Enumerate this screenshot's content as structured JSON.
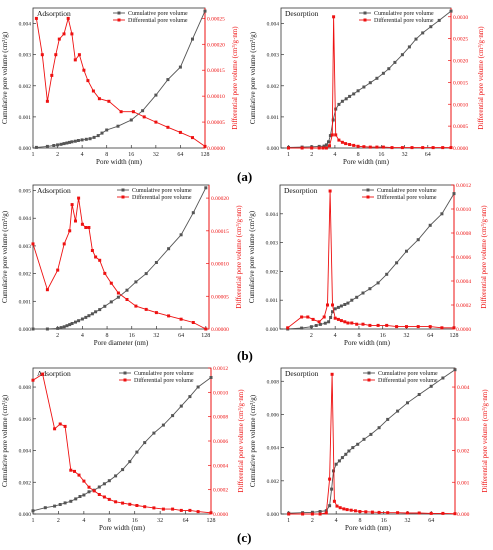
{
  "colors": {
    "cumulative": "#555555",
    "differential": "#ee1111",
    "axis": "#333333"
  },
  "chart_data": [
    {
      "panel": "a",
      "title": "Adsorption",
      "type": "line",
      "x_scale": "log2",
      "xlabel": "Pore width (nm)",
      "ylabel": "Cumulative pore volume (cm³/g)",
      "y2label": "Differential pore volume (cm³/g·nm)",
      "xlim": [
        1,
        128
      ],
      "xticks": [
        "1",
        "2",
        "4",
        "8",
        "16",
        "32",
        "64",
        "128"
      ],
      "ylim": [
        0,
        0.0045
      ],
      "yticks": [
        "0.000",
        "0.001",
        "0.002",
        "0.003",
        "0.004"
      ],
      "y2lim": [
        0,
        0.00027
      ],
      "y2ticks": [
        "0.00000",
        "0.00005",
        "0.00010",
        "0.00015",
        "0.00020",
        "0.00025"
      ],
      "legend": "top-right",
      "series": [
        {
          "name": "Cumulative pore volume",
          "axis": "left",
          "x": [
            1.1,
            1.5,
            1.8,
            2.0,
            2.2,
            2.4,
            2.6,
            2.8,
            3.0,
            3.3,
            3.6,
            4.0,
            4.5,
            5.0,
            5.6,
            6.3,
            7.0,
            8.0,
            11,
            16,
            22,
            32,
            45,
            64,
            90,
            128
          ],
          "y": [
            2e-05,
            5e-05,
            8e-05,
            0.0001,
            0.00012,
            0.00014,
            0.00016,
            0.00018,
            0.0002,
            0.00022,
            0.00024,
            0.00026,
            0.00028,
            0.0003,
            0.00034,
            0.0004,
            0.00048,
            0.00058,
            0.0007,
            0.0009,
            0.0012,
            0.0017,
            0.0022,
            0.0026,
            0.0035,
            0.0044
          ]
        },
        {
          "name": "Differential pore volume",
          "axis": "right",
          "x": [
            1.1,
            1.3,
            1.5,
            1.7,
            1.9,
            2.1,
            2.4,
            2.7,
            3.0,
            3.3,
            3.7,
            4.2,
            4.7,
            5.5,
            6.5,
            8.5,
            12,
            17,
            23,
            32,
            45,
            64,
            90,
            128
          ],
          "y": [
            0.00025,
            0.00018,
            9e-05,
            0.00014,
            0.00018,
            0.00021,
            0.00022,
            0.00025,
            0.00022,
            0.00017,
            0.00018,
            0.00015,
            0.00013,
            0.00011,
            9.5e-05,
            9e-05,
            7e-05,
            7e-05,
            6e-05,
            5e-05,
            4e-05,
            3e-05,
            2e-05,
            3e-06
          ]
        }
      ]
    },
    {
      "panel": "a",
      "title": "Desorption",
      "type": "line",
      "x_scale": "log2",
      "xlabel": "Pore width (nm)",
      "ylabel": "Cumulative pore volume (cm³/g)",
      "y2label": "Differential pore volume (cm³/g·nm)",
      "xlim": [
        0.8,
        128
      ],
      "xticks": [
        "1",
        "2",
        "4",
        "8",
        "16",
        "32",
        "64"
      ],
      "ylim": [
        0,
        0.0045
      ],
      "yticks": [
        "0.000",
        "0.001",
        "0.002",
        "0.003",
        "0.004"
      ],
      "y2lim": [
        0,
        0.0032
      ],
      "y2ticks": [
        "0.0000",
        "0.0005",
        "0.0010",
        "0.0015",
        "0.0020",
        "0.0025",
        "0.0030"
      ],
      "legend": "top-right",
      "series": [
        {
          "name": "Cumulative pore volume",
          "axis": "left",
          "x": [
            1,
            1.5,
            2,
            2.5,
            2.9,
            3.1,
            3.3,
            3.5,
            3.8,
            4.1,
            4.5,
            5,
            5.6,
            6.2,
            7,
            8,
            9.5,
            11.5,
            14,
            17,
            20,
            24,
            30,
            37,
            45,
            55,
            70,
            90,
            128
          ],
          "y": [
            2e-05,
            3e-05,
            4e-05,
            5e-05,
            6e-05,
            0.0001,
            0.0002,
            0.0004,
            0.0009,
            0.00125,
            0.0014,
            0.0015,
            0.00158,
            0.00166,
            0.00174,
            0.00184,
            0.00196,
            0.0021,
            0.00224,
            0.0024,
            0.00255,
            0.00275,
            0.003,
            0.00325,
            0.0035,
            0.0037,
            0.0039,
            0.0041,
            0.0044
          ]
        },
        {
          "name": "Differential pore volume",
          "axis": "right",
          "x": [
            1,
            1.5,
            2,
            2.5,
            2.8,
            3.1,
            3.4,
            3.7,
            3.85,
            4.1,
            4.5,
            5,
            5.5,
            6.2,
            7,
            8,
            9.5,
            11.5,
            14,
            17,
            22,
            30,
            40,
            55,
            75,
            100,
            128
          ],
          "y": [
            0,
            0,
            0,
            0,
            0,
            0,
            5e-05,
            0.0003,
            0.003,
            0.0003,
            0.00018,
            0.00013,
            0.0001,
            8e-05,
            6e-05,
            4e-05,
            3e-05,
            2e-05,
            2e-05,
            2e-05,
            1e-05,
            1e-05,
            1e-05,
            1e-05,
            1e-05,
            1e-05,
            1e-05
          ]
        }
      ]
    },
    {
      "panel": "b",
      "title": "Adsorption",
      "type": "line",
      "x_scale": "log2",
      "xlabel": "Pore diameter (nm)",
      "ylabel": "Cumulative pore volume (cm³/g)",
      "y2label": "Differential pore volume (cm³/g·nm)",
      "xlim": [
        1,
        140
      ],
      "xticks": [
        "2",
        "4",
        "8",
        "16",
        "32",
        "64",
        "128"
      ],
      "ylim": [
        0,
        0.0052
      ],
      "yticks": [
        "0.000",
        "0.001",
        "0.002",
        "0.003",
        "0.004",
        "0.005"
      ],
      "y2lim": [
        0,
        0.00022
      ],
      "y2ticks": [
        "0.00000",
        "0.00005",
        "0.00010",
        "0.00015",
        "0.00020"
      ],
      "legend": "top-right",
      "series": [
        {
          "name": "Cumulative pore volume",
          "axis": "left",
          "x": [
            1,
            1.5,
            2,
            2.2,
            2.4,
            2.6,
            2.8,
            3.0,
            3.3,
            3.6,
            4.0,
            4.4,
            4.8,
            5.3,
            5.8,
            6.5,
            7.5,
            9,
            11,
            14,
            18,
            24,
            32,
            45,
            64,
            90,
            128
          ],
          "y": [
            0,
            0,
            2e-05,
            5e-05,
            8e-05,
            0.00012,
            0.00016,
            0.0002,
            0.00025,
            0.0003,
            0.00036,
            0.00042,
            0.00048,
            0.00055,
            0.00062,
            0.0007,
            0.00082,
            0.00098,
            0.00115,
            0.0014,
            0.0017,
            0.002,
            0.0024,
            0.0029,
            0.0034,
            0.0042,
            0.0051
          ]
        },
        {
          "name": "Differential pore volume",
          "axis": "right",
          "x": [
            1,
            1.5,
            2,
            2.4,
            2.8,
            3.0,
            3.3,
            3.6,
            4.0,
            4.4,
            4.8,
            5.3,
            5.8,
            6.5,
            7.5,
            9,
            11,
            14,
            18,
            24,
            32,
            45,
            64,
            90,
            128
          ],
          "y": [
            0.00013,
            6e-05,
            9e-05,
            0.00013,
            0.00015,
            0.00019,
            0.000165,
            0.0002,
            0.00016,
            0.000155,
            0.000155,
            0.00012,
            0.00011,
            0.000105,
            8.5e-05,
            7e-05,
            5.5e-05,
            4.5e-05,
            3.5e-05,
            3e-05,
            2.5e-05,
            2e-05,
            1.5e-05,
            1e-05,
            0
          ]
        }
      ]
    },
    {
      "panel": "b",
      "title": "Desorption",
      "type": "line",
      "x_scale": "log2",
      "xlabel": "Pore width (nm)",
      "ylabel": "Cumulative pore volume (cm³/g)",
      "y2label": "Differential pore volume (cm³/g·nm)",
      "xlim": [
        0.8,
        128
      ],
      "xticks": [
        "2",
        "4",
        "8",
        "16",
        "32",
        "64",
        "128"
      ],
      "ylim": [
        0,
        0.005
      ],
      "yticks": [
        "0.000",
        "0.001",
        "0.002",
        "0.003",
        "0.004"
      ],
      "y2lim": [
        0,
        0.0012
      ],
      "y2ticks": [
        "0.0000",
        "0.0002",
        "0.0004",
        "0.0006",
        "0.0008",
        "0.0010",
        "0.0012"
      ],
      "legend": "top-right",
      "series": [
        {
          "name": "Cumulative pore volume",
          "axis": "left",
          "x": [
            1,
            1.5,
            2,
            2.3,
            2.6,
            3.0,
            3.3,
            3.5,
            3.7,
            4.0,
            4.4,
            4.8,
            5.3,
            5.8,
            6.5,
            7.5,
            9,
            11,
            14,
            18,
            24,
            32,
            45,
            64,
            90,
            128
          ],
          "y": [
            0,
            3e-05,
            8e-05,
            0.00012,
            0.00016,
            0.0002,
            0.00025,
            0.0004,
            0.0006,
            0.0007,
            0.00075,
            0.0008,
            0.00085,
            0.0009,
            0.001,
            0.0011,
            0.00125,
            0.0014,
            0.0016,
            0.0019,
            0.0023,
            0.0027,
            0.0031,
            0.0036,
            0.004,
            0.0047
          ]
        },
        {
          "name": "Differential pore volume",
          "axis": "right",
          "x": [
            1,
            1.5,
            1.8,
            2.1,
            2.5,
            2.9,
            3.2,
            3.45,
            3.7,
            4.0,
            4.4,
            4.8,
            5.3,
            5.8,
            6.5,
            7.5,
            9,
            11,
            14,
            18,
            24,
            32,
            45,
            64,
            90,
            128
          ],
          "y": [
            1e-05,
            0.0001,
            0.0001,
            8e-05,
            6e-05,
            0.0001,
            0.0002,
            0.00115,
            0.0002,
            9e-05,
            8e-05,
            7e-05,
            6e-05,
            5e-05,
            5e-05,
            4e-05,
            4e-05,
            3e-05,
            3e-05,
            3e-05,
            2e-05,
            2e-05,
            2e-05,
            2e-05,
            1e-05,
            1e-05
          ]
        }
      ]
    },
    {
      "panel": "c",
      "title": "Adsorption",
      "type": "line",
      "x_scale": "log2",
      "xlabel": "Pore width (nm)",
      "ylabel": "Cumulative pore volume (cm³/g)",
      "y2label": "Differential pore volume (cm³/g·nm)",
      "xlim": [
        1,
        128
      ],
      "xticks": [
        "1",
        "2",
        "4",
        "8",
        "16",
        "32",
        "64",
        "128"
      ],
      "ylim": [
        0,
        0.0092
      ],
      "yticks": [
        "0.000",
        "0.002",
        "0.004",
        "0.006",
        "0.008"
      ],
      "y2lim": [
        0,
        0.0012
      ],
      "y2ticks": [
        "0.0000",
        "0.0002",
        "0.0004",
        "0.0006",
        "0.0008",
        "0.0010",
        "0.0012"
      ],
      "legend": "top-right",
      "series": [
        {
          "name": "Cumulative pore volume",
          "axis": "left",
          "x": [
            1,
            1.4,
            1.8,
            2.1,
            2.4,
            2.8,
            3.2,
            3.6,
            4.0,
            4.6,
            5.3,
            6.1,
            7.0,
            8.0,
            9.5,
            11.5,
            14,
            17,
            21,
            27,
            35,
            45,
            57,
            72,
            90,
            128
          ],
          "y": [
            0.0002,
            0.0004,
            0.0005,
            0.0006,
            0.0007,
            0.0008,
            0.00095,
            0.0011,
            0.0012,
            0.0014,
            0.0015,
            0.0017,
            0.0019,
            0.0021,
            0.0024,
            0.0028,
            0.0033,
            0.0039,
            0.0045,
            0.0051,
            0.0056,
            0.0062,
            0.0068,
            0.0074,
            0.008,
            0.0086
          ]
        },
        {
          "name": "Differential pore volume",
          "axis": "right",
          "x": [
            1,
            1.3,
            1.8,
            2.1,
            2.4,
            2.8,
            3.1,
            3.5,
            4.0,
            4.6,
            5.3,
            6.1,
            7.0,
            8.0,
            9.5,
            11.5,
            14,
            17,
            21,
            27,
            35,
            45,
            57,
            72,
            90,
            128
          ],
          "y": [
            0.0011,
            0.00115,
            0.0007,
            0.00074,
            0.00072,
            0.00036,
            0.00035,
            0.00032,
            0.00027,
            0.00022,
            0.00019,
            0.00016,
            0.00014,
            0.00012,
            0.0001,
            9e-05,
            8e-05,
            7e-05,
            6e-05,
            5e-05,
            4e-05,
            4e-05,
            3e-05,
            3e-05,
            2e-05,
            1e-05
          ]
        }
      ]
    },
    {
      "panel": "c",
      "title": "Desorption",
      "type": "line",
      "x_scale": "log2",
      "xlabel": "Pore width (nm)",
      "ylabel": "Cumulative pore volume (cm³/g)",
      "y2label": "Differential pore volume (cm³/g·nm)",
      "xlim": [
        0.8,
        128
      ],
      "xticks": [
        "1",
        "2",
        "4",
        "8",
        "16",
        "32",
        "64"
      ],
      "ylim": [
        0,
        0.0088
      ],
      "yticks": [
        "0.000",
        "0.002",
        "0.004",
        "0.006",
        "0.008"
      ],
      "y2lim": [
        0,
        0.0046
      ],
      "y2ticks": [
        "0.000",
        "0.001",
        "0.002",
        "0.003",
        "0.004"
      ],
      "legend": "top-right",
      "series": [
        {
          "name": "Cumulative pore volume",
          "axis": "left",
          "x": [
            1,
            1.5,
            2,
            2.5,
            3.0,
            3.3,
            3.5,
            3.7,
            4.0,
            4.4,
            4.8,
            5.3,
            5.8,
            6.5,
            7.5,
            9,
            11,
            14,
            18,
            24,
            32,
            45,
            64,
            90,
            128
          ],
          "y": [
            5e-05,
            8e-05,
            0.0001,
            0.00015,
            0.0002,
            0.0005,
            0.0015,
            0.0026,
            0.003,
            0.0032,
            0.0034,
            0.0036,
            0.0038,
            0.004,
            0.0042,
            0.0045,
            0.0048,
            0.0052,
            0.0057,
            0.0062,
            0.0067,
            0.0072,
            0.0077,
            0.0082,
            0.0087
          ]
        },
        {
          "name": "Differential pore volume",
          "axis": "right",
          "x": [
            1,
            1.5,
            2,
            2.5,
            3.0,
            3.3,
            3.55,
            3.8,
            4.1,
            4.5,
            5,
            5.5,
            6.2,
            7,
            8,
            9.5,
            11.5,
            14,
            18,
            24,
            32,
            45,
            64,
            90,
            128
          ],
          "y": [
            0,
            0,
            0,
            0,
            3e-05,
            0.0011,
            0.0044,
            0.0004,
            0.00025,
            0.0002,
            0.00016,
            0.00014,
            0.00012,
            0.0001,
            8e-05,
            7e-05,
            6e-05,
            5e-05,
            4e-05,
            4e-05,
            3e-05,
            3e-05,
            2e-05,
            2e-05,
            1e-05
          ]
        }
      ]
    }
  ],
  "panel_labels": [
    "(a)",
    "(b)",
    "(c)"
  ]
}
